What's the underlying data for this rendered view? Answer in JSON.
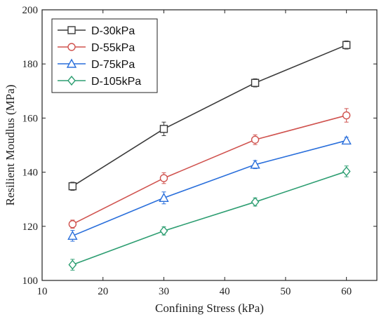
{
  "chart_data": {
    "type": "line",
    "xlabel": "Confining Stress (kPa)",
    "ylabel": "Resilient Moudlus (MPa)",
    "xlim": [
      10,
      65
    ],
    "ylim": [
      100,
      200
    ],
    "xticks": [
      10,
      20,
      30,
      40,
      50,
      60
    ],
    "yticks": [
      100,
      120,
      140,
      160,
      180,
      200
    ],
    "x": [
      15,
      30,
      45,
      60
    ],
    "legend_position": "top-left",
    "grid": false,
    "series": [
      {
        "name": "D-30kPa",
        "color": "#3a3a3a",
        "marker": "square",
        "values": [
          134.8,
          156.0,
          173.0,
          187.0
        ],
        "errors": [
          1.5,
          2.5,
          1.5,
          1.5
        ]
      },
      {
        "name": "D-55kPa",
        "color": "#d0534f",
        "marker": "circle",
        "values": [
          120.8,
          137.8,
          152.0,
          161.0
        ],
        "errors": [
          1.5,
          2.0,
          1.8,
          2.5
        ]
      },
      {
        "name": "D-75kPa",
        "color": "#2a6fdb",
        "marker": "triangle",
        "values": [
          116.5,
          130.5,
          142.8,
          151.7
        ],
        "errors": [
          2.0,
          2.2,
          1.5,
          1.2
        ]
      },
      {
        "name": "D-105kPa",
        "color": "#2e9e72",
        "marker": "diamond",
        "values": [
          105.8,
          118.3,
          129.0,
          140.3
        ],
        "errors": [
          2.0,
          1.5,
          1.5,
          2.0
        ]
      }
    ]
  }
}
